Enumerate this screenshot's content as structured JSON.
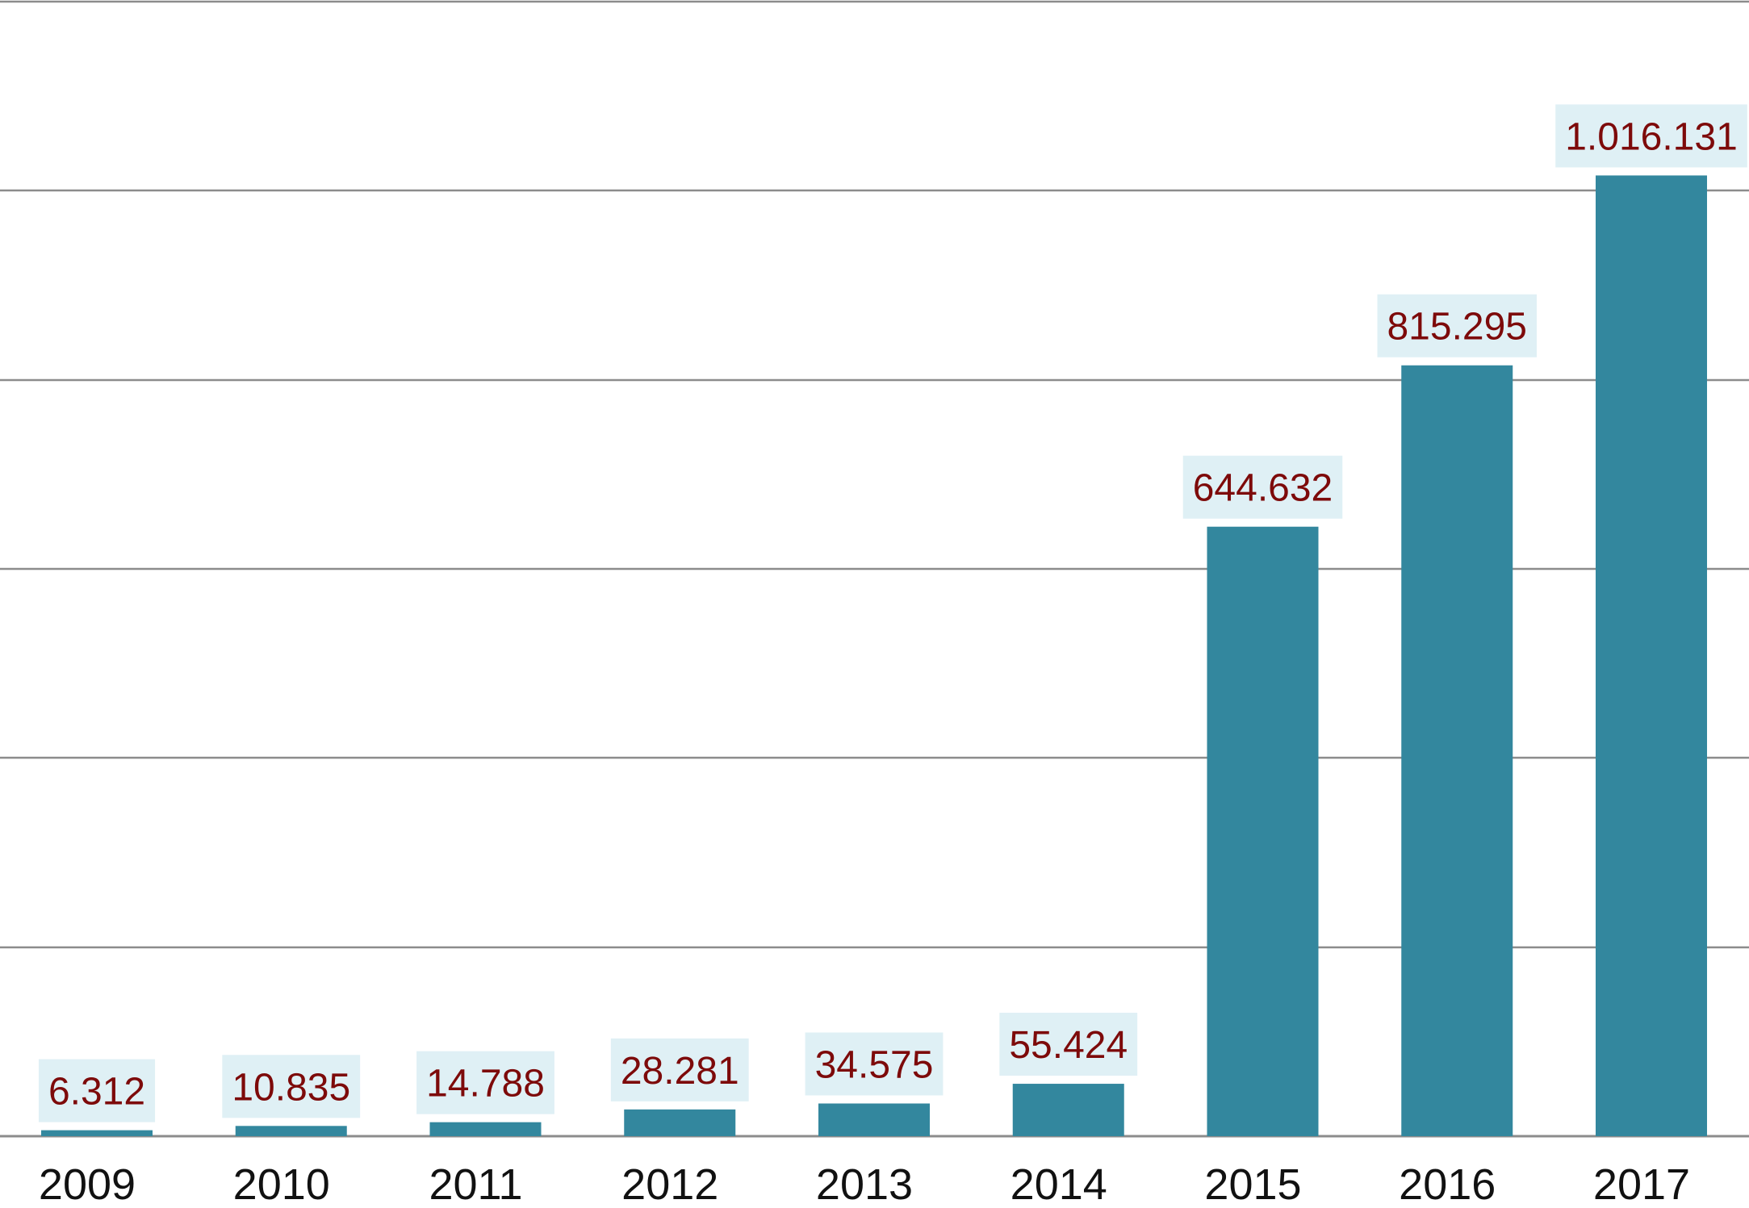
{
  "chart_data": {
    "type": "bar",
    "categories": [
      "2009",
      "2010",
      "2011",
      "2012",
      "2013",
      "2014",
      "2015",
      "2016",
      "2017"
    ],
    "values": [
      6312,
      10835,
      14788,
      28281,
      34575,
      55424,
      644632,
      815295,
      1016131
    ],
    "data_labels": [
      "6.312",
      "10.835",
      "14.788",
      "28.281",
      "34.575",
      "55.424",
      "644.632",
      "815.295",
      "1.016.131"
    ],
    "ylim": [
      0,
      1200000
    ],
    "gridline_step": 200000,
    "grid": true,
    "legend": "none",
    "colors": {
      "bar": "#33879e",
      "label_background": "#dff0f5",
      "label_text": "#7d0a0a",
      "gridline": "#8c8c8c"
    }
  }
}
